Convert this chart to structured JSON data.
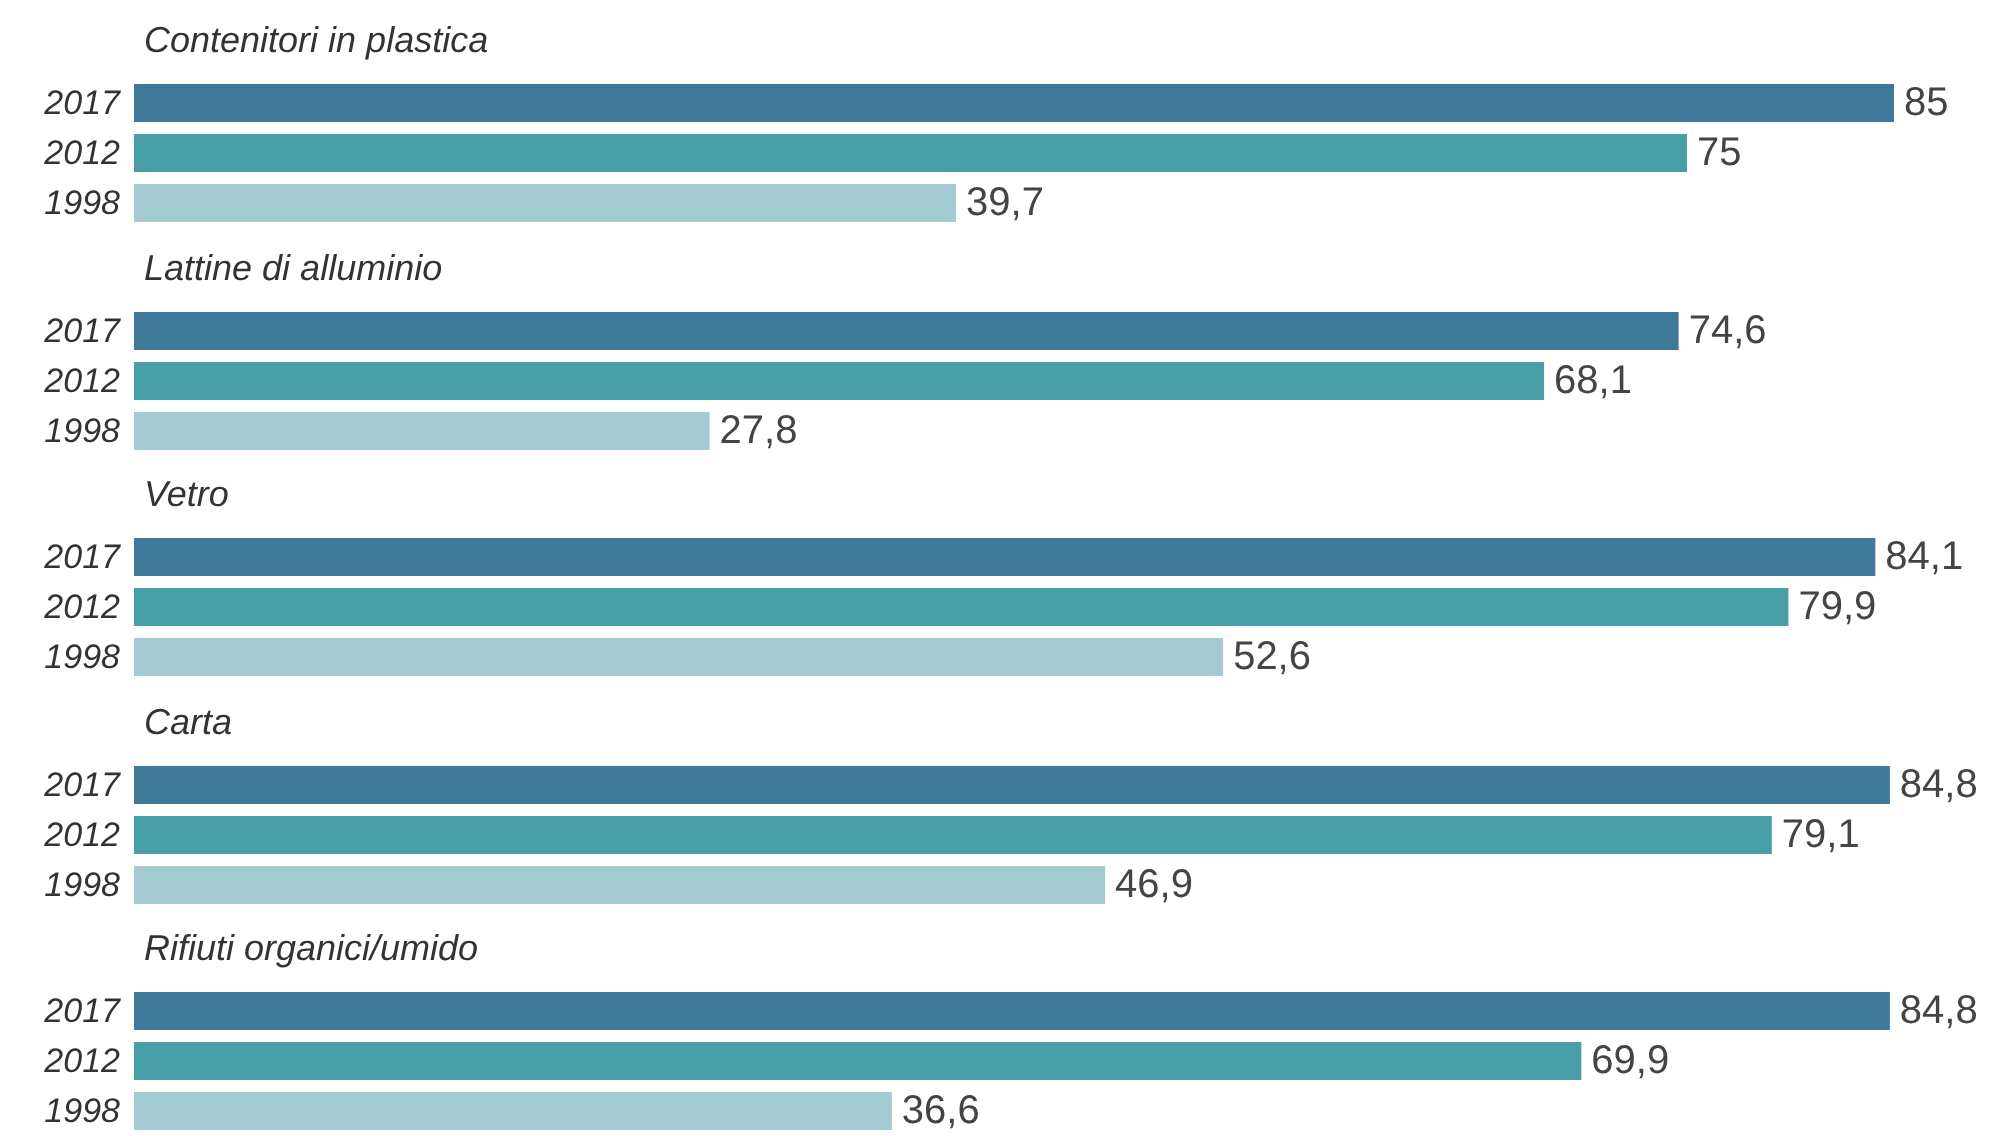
{
  "chart_data": [
    {
      "type": "bar",
      "orientation": "horizontal",
      "title": "Contenitori in plastica",
      "categories": [
        "2017",
        "2012",
        "1998"
      ],
      "values": [
        85,
        75,
        39.7
      ],
      "value_labels": [
        "85",
        "75",
        "39,7"
      ],
      "colors": [
        "#40789a",
        "#479ea6",
        "#a3c9d1"
      ]
    },
    {
      "type": "bar",
      "orientation": "horizontal",
      "title": "Lattine di alluminio",
      "categories": [
        "2017",
        "2012",
        "1998"
      ],
      "values": [
        74.6,
        68.1,
        27.8
      ],
      "value_labels": [
        "74,6",
        "68,1",
        "27,8"
      ],
      "colors": [
        "#40789a",
        "#479ea6",
        "#a3c9d1"
      ]
    },
    {
      "type": "bar",
      "orientation": "horizontal",
      "title": "Vetro",
      "categories": [
        "2017",
        "2012",
        "1998"
      ],
      "values": [
        84.1,
        79.9,
        52.6
      ],
      "value_labels": [
        "84,1",
        "79,9",
        "52,6"
      ],
      "colors": [
        "#40789a",
        "#479ea6",
        "#a3c9d1"
      ]
    },
    {
      "type": "bar",
      "orientation": "horizontal",
      "title": "Carta",
      "categories": [
        "2017",
        "2012",
        "1998"
      ],
      "values": [
        84.8,
        79.1,
        46.9
      ],
      "value_labels": [
        "84,8",
        "79,1",
        "46,9"
      ],
      "colors": [
        "#40789a",
        "#479ea6",
        "#a3c9d1"
      ]
    },
    {
      "type": "bar",
      "orientation": "horizontal",
      "title": "Rifiuti organici/umido",
      "categories": [
        "2017",
        "2012",
        "1998"
      ],
      "values": [
        84.8,
        69.9,
        36.6
      ],
      "value_labels": [
        "84,8",
        "69,9",
        "36,6"
      ],
      "colors": [
        "#40789a",
        "#479ea6",
        "#a3c9d1"
      ]
    }
  ]
}
